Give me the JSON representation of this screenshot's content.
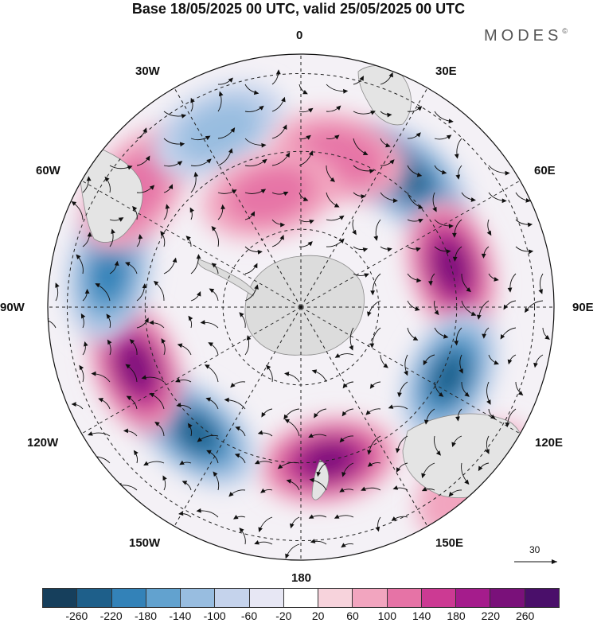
{
  "title": "Base 18/05/2025 00 UTC, valid 25/05/2025 00 UTC",
  "logo": "MODES",
  "logo_mark": "©",
  "longitude_labels": {
    "lon_0": "0",
    "lon_30e": "30E",
    "lon_60e": "60E",
    "lon_90e": "90E",
    "lon_120e": "120E",
    "lon_150e": "150E",
    "lon_180": "180",
    "lon_150w": "150W",
    "lon_120w": "120W",
    "lon_90w": "90W",
    "lon_60w": "60W",
    "lon_30w": "30W"
  },
  "reference_vector": "30",
  "colorbar": {
    "colors": [
      "#163f5c",
      "#1e5f8a",
      "#3382b8",
      "#62a2cf",
      "#98bde0",
      "#c5d3ec",
      "#e7e7f4",
      "#ffffff",
      "#f7d3dc",
      "#f2a5bf",
      "#e673a6",
      "#cc3a93",
      "#a51c8c",
      "#7a117a",
      "#4a0f6a"
    ],
    "tick_labels": [
      "-260",
      "-220",
      "-180",
      "-140",
      "-100",
      "-60",
      "-20",
      "20",
      "60",
      "100",
      "140",
      "180",
      "220",
      "260"
    ]
  },
  "anomaly_centers": [
    {
      "lon": 40,
      "lat": -47,
      "value": -240
    },
    {
      "lon": 75,
      "lat": -50,
      "value": 230
    },
    {
      "lon": 115,
      "lat": -48,
      "value": -240
    },
    {
      "lon": 170,
      "lat": -50,
      "value": 230
    },
    {
      "lon": -140,
      "lat": -48,
      "value": -240
    },
    {
      "lon": -110,
      "lat": -45,
      "value": 230
    },
    {
      "lon": -80,
      "lat": -40,
      "value": -180
    },
    {
      "lon": -55,
      "lat": -38,
      "value": 120
    },
    {
      "lon": -25,
      "lat": -40,
      "value": -120
    },
    {
      "lon": 15,
      "lat": -50,
      "value": 110
    },
    {
      "lon": -15,
      "lat": -60,
      "value": 130
    },
    {
      "lon": 135,
      "lat": -27,
      "value": 80
    }
  ]
}
